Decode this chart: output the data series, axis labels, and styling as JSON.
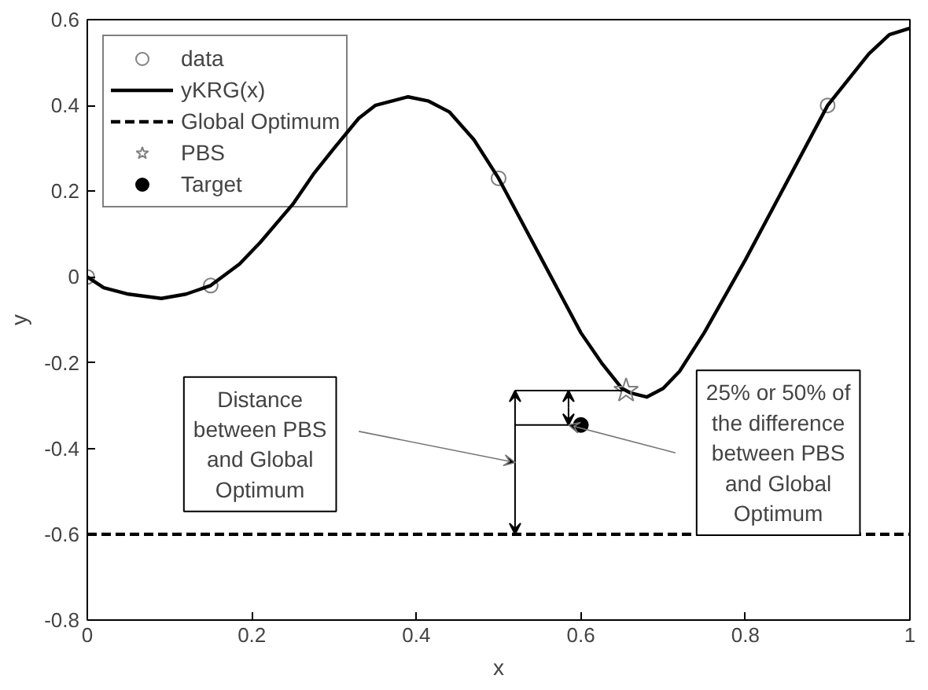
{
  "chart_data": {
    "type": "line",
    "xlabel": "x",
    "ylabel": "y",
    "xlim": [
      0,
      1
    ],
    "xticks": [
      0,
      0.2,
      0.4,
      0.6,
      0.8,
      1
    ],
    "ylim": [
      -0.8,
      0.6
    ],
    "yticks": [
      -0.8,
      -0.6,
      -0.4,
      -0.2,
      0,
      0.2,
      0.4,
      0.6
    ],
    "grid": false,
    "legend": "top left",
    "series": [
      {
        "name": "data",
        "type": "scatter",
        "marker": "circle",
        "color": "#808080",
        "x": [
          0,
          0.15,
          0.5,
          0.9
        ],
        "values": [
          0,
          -0.02,
          0.23,
          0.4
        ]
      },
      {
        "name": "yKRG(x)",
        "line_style": "solid",
        "color": "#000000",
        "x": [
          0,
          0.02,
          0.05,
          0.09,
          0.12,
          0.15,
          0.185,
          0.21,
          0.25,
          0.275,
          0.3,
          0.33,
          0.35,
          0.39,
          0.415,
          0.44,
          0.47,
          0.5,
          0.525,
          0.55,
          0.575,
          0.6,
          0.625,
          0.65,
          0.66,
          0.68,
          0.7,
          0.72,
          0.75,
          0.8,
          0.85,
          0.9,
          0.95,
          0.975,
          1
        ],
        "values": [
          0,
          -0.025,
          -0.04,
          -0.05,
          -0.04,
          -0.02,
          0.03,
          0.08,
          0.17,
          0.24,
          0.3,
          0.37,
          0.4,
          0.42,
          0.41,
          0.385,
          0.32,
          0.23,
          0.14,
          0.05,
          -0.04,
          -0.13,
          -0.2,
          -0.26,
          -0.27,
          -0.28,
          -0.26,
          -0.22,
          -0.13,
          0.04,
          0.22,
          0.4,
          0.52,
          0.565,
          0.58
        ]
      },
      {
        "name": "Global Optimum",
        "line_style": "dashed",
        "color": "#000000",
        "x": [
          0,
          1
        ],
        "values": [
          -0.6,
          -0.6
        ]
      },
      {
        "name": "PBS",
        "type": "scatter",
        "marker": "star",
        "color": "#808080",
        "x": [
          0.655
        ],
        "values": [
          -0.265
        ]
      },
      {
        "name": "Target",
        "type": "scatter",
        "marker": "circle",
        "color": "#000000",
        "x": [
          0.6
        ],
        "values": [
          -0.345
        ]
      }
    ],
    "annotations": [
      "Distance\nbetween PBS\nand Global\nOptimum",
      "25% or 50% of\nthe difference\nbetween PBS\nand Global\nOptimum"
    ]
  }
}
